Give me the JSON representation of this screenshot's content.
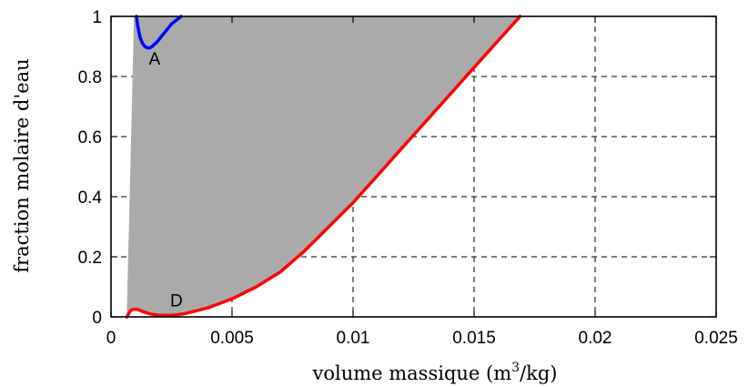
{
  "chart_data": {
    "type": "area",
    "xlabel": "volume massique (m",
    "xlabel_sup": "3",
    "xlabel_tail": "/kg)",
    "ylabel": "fraction molaire d'eau",
    "xlim": [
      0,
      0.025
    ],
    "ylim": [
      0,
      1
    ],
    "xticks": [
      "0",
      "0.005",
      "0.01",
      "0.015",
      "0.02",
      "0.025"
    ],
    "xtick_values": [
      0,
      0.005,
      0.01,
      0.015,
      0.02,
      0.025
    ],
    "yticks": [
      "0",
      "0.2",
      "0.4",
      "0.6",
      "0.8",
      "1"
    ],
    "ytick_values": [
      0,
      0.2,
      0.4,
      0.6,
      0.8,
      1
    ],
    "grid": true,
    "fill_color": "#aaaaaa",
    "region_left_boundary": {
      "x": [
        0.00065,
        0.00095
      ],
      "y": [
        0,
        1
      ]
    },
    "series": [
      {
        "color": "#ff0000",
        "x": [
          0.00065,
          0.0008,
          0.0009,
          0.0011,
          0.0013,
          0.0016,
          0.002,
          0.0025,
          0.003,
          0.0035,
          0.004,
          0.0045,
          0.005,
          0.006,
          0.007,
          0.008,
          0.009,
          0.01,
          0.011,
          0.012,
          0.013,
          0.014,
          0.015,
          0.016,
          0.0169
        ],
        "y": [
          0.0,
          0.02,
          0.025,
          0.025,
          0.018,
          0.01,
          0.005,
          0.005,
          0.01,
          0.02,
          0.03,
          0.045,
          0.06,
          0.1,
          0.15,
          0.22,
          0.3,
          0.38,
          0.47,
          0.56,
          0.65,
          0.74,
          0.83,
          0.92,
          1.0
        ]
      },
      {
        "color": "#0000ff",
        "x": [
          0.00105,
          0.0011,
          0.0012,
          0.0013,
          0.0014,
          0.0015,
          0.0016,
          0.0017,
          0.0019,
          0.0021,
          0.0023,
          0.0025,
          0.0029
        ],
        "y": [
          1.0,
          0.97,
          0.93,
          0.91,
          0.9,
          0.895,
          0.895,
          0.9,
          0.915,
          0.935,
          0.955,
          0.975,
          1.0
        ]
      }
    ],
    "annotations": [
      {
        "text": "A",
        "x": 0.0018,
        "y": 0.84
      },
      {
        "text": "D",
        "x": 0.0027,
        "y": 0.035
      }
    ]
  }
}
